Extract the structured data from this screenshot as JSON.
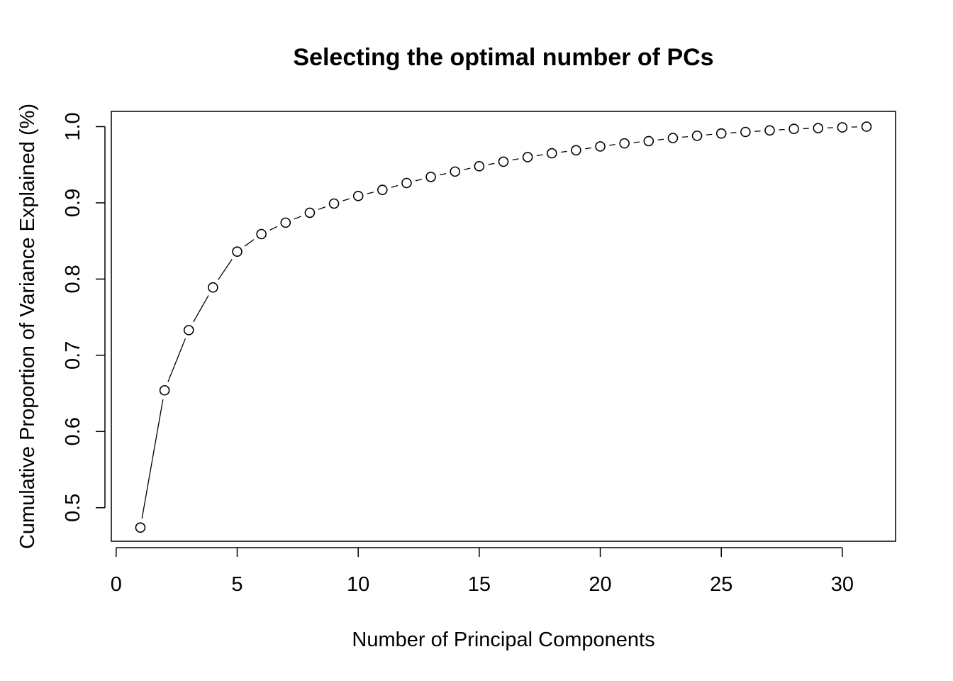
{
  "chart_data": {
    "type": "line",
    "title": "Selecting the optimal number of PCs",
    "xlabel": "Number of Principal Components",
    "ylabel": "Cumulative Proportion of Variance Explained (%)",
    "xlim": [
      -0.2,
      32.2
    ],
    "ylim": [
      0.456,
      1.02
    ],
    "x_ticks": [
      0,
      5,
      10,
      15,
      20,
      25,
      30
    ],
    "x_tick_labels": [
      "0",
      "5",
      "10",
      "15",
      "20",
      "25",
      "30"
    ],
    "y_ticks": [
      0.5,
      0.6,
      0.7,
      0.8,
      0.9,
      1.0
    ],
    "y_tick_labels": [
      "0.5",
      "0.6",
      "0.7",
      "0.8",
      "0.9",
      "1.0"
    ],
    "grid": false,
    "series": [
      {
        "marker": "open-circle",
        "line": true,
        "x": [
          1,
          2,
          3,
          4,
          5,
          6,
          7,
          8,
          9,
          10,
          11,
          12,
          13,
          14,
          15,
          16,
          17,
          18,
          19,
          20,
          21,
          22,
          23,
          24,
          25,
          26,
          27,
          28,
          29,
          30,
          31
        ],
        "values": [
          0.474,
          0.654,
          0.733,
          0.789,
          0.836,
          0.859,
          0.874,
          0.887,
          0.899,
          0.909,
          0.917,
          0.926,
          0.934,
          0.941,
          0.948,
          0.954,
          0.96,
          0.965,
          0.969,
          0.974,
          0.978,
          0.981,
          0.985,
          0.988,
          0.991,
          0.993,
          0.995,
          0.997,
          0.998,
          0.999,
          1.0
        ]
      }
    ]
  }
}
